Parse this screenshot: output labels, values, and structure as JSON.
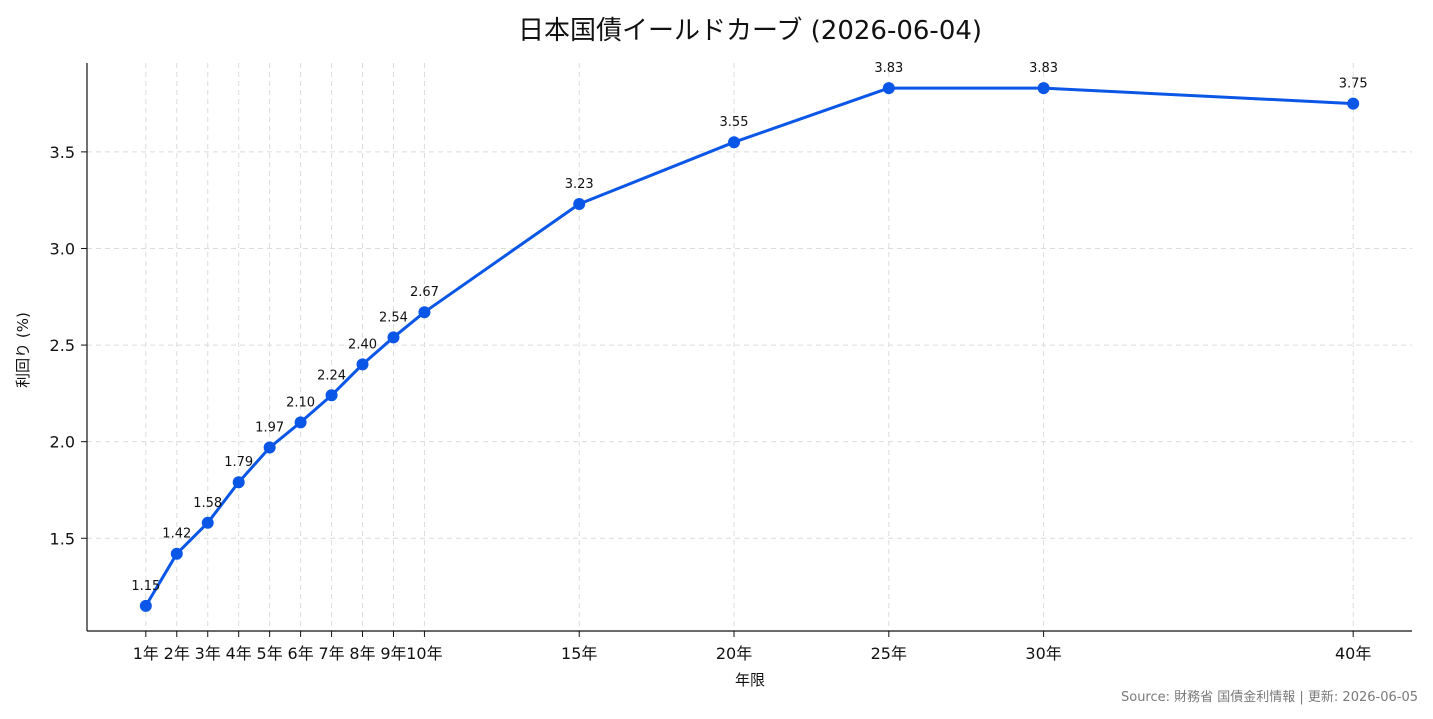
{
  "chart_data": {
    "type": "line",
    "title": "日本国債イールドカーブ (2026-06-04)",
    "xlabel": "年限",
    "ylabel": "利回り (%)",
    "x": [
      1,
      2,
      3,
      4,
      5,
      6,
      7,
      8,
      9,
      10,
      15,
      20,
      25,
      30,
      40
    ],
    "x_tick_labels": [
      "1年",
      "2年",
      "3年",
      "4年",
      "5年",
      "6年",
      "7年",
      "8年",
      "9年",
      "10年",
      "15年",
      "20年",
      "25年",
      "30年",
      "40年"
    ],
    "series": [
      {
        "values": [
          1.15,
          1.42,
          1.58,
          1.79,
          1.97,
          2.1,
          2.24,
          2.4,
          2.54,
          2.67,
          3.23,
          3.55,
          3.83,
          3.83,
          3.75
        ],
        "data_labels": [
          "1.15",
          "1.42",
          "1.58",
          "1.79",
          "1.97",
          "2.10",
          "2.24",
          "2.40",
          "2.54",
          "2.67",
          "3.23",
          "3.55",
          "3.83",
          "3.83",
          "3.75"
        ]
      }
    ],
    "y_ticks": [
      "1.5",
      "2.0",
      "2.5",
      "3.0",
      "3.5"
    ],
    "ylim": [
      1.02,
      3.96
    ],
    "xlim": [
      -0.9,
      41.9
    ],
    "grid": true,
    "line_color": "#0a56e6",
    "source": "Source: 財務省 国債金利情報 | 更新: 2026-06-05"
  }
}
